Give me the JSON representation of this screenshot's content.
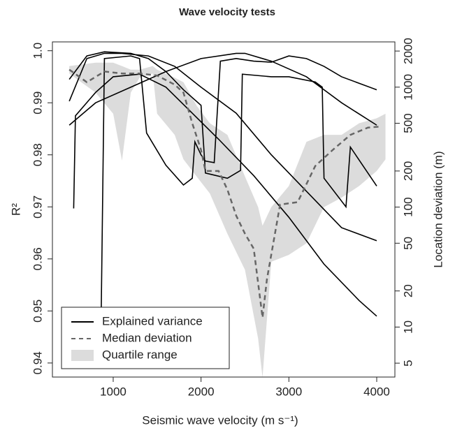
{
  "chart_data": {
    "type": "line",
    "title": "Wave velocity tests",
    "x_label": "Seismic wave velocity (m s⁻¹)",
    "y_label": "R²",
    "y2_label": "Location deviation (m)",
    "xlim": [
      308,
      4207
    ],
    "xticks": [
      1000,
      2000,
      3000,
      4000
    ],
    "ylim": [
      0.9373,
      1.0017
    ],
    "yticks": [
      0.94,
      0.95,
      0.96,
      0.97,
      0.98,
      0.99,
      {
        "value": 1,
        "label": "1.0"
      }
    ],
    "y2lim": [
      3.83,
      2384
    ],
    "y2_log": true,
    "y2ticks": [
      5,
      10,
      20,
      50,
      100,
      200,
      500,
      1000,
      2000
    ],
    "legend": "bottom-left",
    "series": [
      {
        "name": "Explained variance",
        "color": "#000000",
        "style": "solid",
        "curves": [
          {
            "x": [
              500,
              800,
              1200,
              1600,
              2000,
              2400,
              2500,
              2800,
              3200,
              3600,
              4000
            ],
            "values": [
              0.9857,
              0.99,
              0.993,
              0.996,
              0.9985,
              0.9995,
              0.9995,
              0.998,
              0.995,
              0.99,
              0.9857
            ]
          },
          {
            "x": [
              500,
              700,
              900,
              1100,
              1400,
              1700,
              2000,
              2400,
              2800,
              3200,
              3600,
              4000
            ],
            "values": [
              0.9903,
              0.9985,
              0.9995,
              0.9995,
              0.999,
              0.997,
              0.993,
              0.988,
              0.98,
              0.973,
              0.966,
              0.9635
            ]
          },
          {
            "x": [
              550,
              570,
              800,
              1000,
              1300,
              1600,
              1900,
              2200,
              2600,
              3000,
              3400,
              3800,
              4000
            ],
            "values": [
              0.9697,
              0.9875,
              0.992,
              0.995,
              0.9955,
              0.993,
              0.988,
              0.983,
              0.976,
              0.968,
              0.959,
              0.952,
              0.949
            ]
          },
          {
            "x": [
              860,
              900,
              1200,
              1300,
              1380,
              1600,
              1800,
              1900,
              1930,
              2000,
              2050,
              2150,
              2220,
              2400,
              2600,
              2800,
              3000,
              3200,
              3400,
              3600,
              4000
            ],
            "values": [
              0.945,
              0.9985,
              0.999,
              0.9985,
              0.9842,
              0.978,
              0.9742,
              0.9755,
              0.9825,
              0.98,
              0.9788,
              0.9785,
              0.998,
              0.9985,
              0.998,
              0.9978,
              0.999,
              0.9985,
              0.997,
              0.995,
              0.9925
            ]
          },
          {
            "x": [
              500,
              700,
              900,
              1200,
              1400,
              1600,
              1800,
              2000,
              2050,
              2300,
              2450,
              2470,
              2800,
              3000,
              3300,
              3380,
              3400,
              3650,
              3700,
              4000
            ],
            "values": [
              0.9945,
              0.999,
              0.9998,
              0.9995,
              0.9985,
              0.996,
              0.9925,
              0.9895,
              0.9765,
              0.9755,
              0.977,
              0.9955,
              0.995,
              0.995,
              0.994,
              0.993,
              0.9755,
              0.97,
              0.9815,
              0.974
            ]
          }
        ]
      },
      {
        "name": "Median deviation",
        "color": "#666666",
        "style": "dashed",
        "axis": "y2",
        "x": [
          500,
          700,
          900,
          1100,
          1300,
          1500,
          1700,
          1800,
          1900,
          2000,
          2050,
          2200,
          2300,
          2400,
          2500,
          2600,
          2700,
          2750,
          2900,
          3100,
          3300,
          3500,
          3700,
          3900,
          4050
        ],
        "values": [
          1400,
          1100,
          1350,
          1300,
          1300,
          1250,
          1050,
          900,
          500,
          300,
          200,
          200,
          140,
          85,
          60,
          45,
          12,
          25,
          105,
          110,
          220,
          300,
          400,
          460,
          470
        ]
      },
      {
        "name": "Quartile range",
        "color": "#dcdcdc",
        "axis": "y2",
        "x": [
          500,
          800,
          1000,
          1100,
          1200,
          1300,
          1450,
          1500,
          1700,
          1800,
          1950,
          2100,
          2300,
          2500,
          2650,
          2700,
          2800,
          3000,
          3200,
          3400,
          3600,
          3800,
          4000,
          4100
        ],
        "low": [
          1300,
          900,
          600,
          244,
          900,
          1200,
          1300,
          600,
          400,
          250,
          180,
          130,
          60,
          30,
          8,
          3.8,
          35,
          40,
          50,
          100,
          120,
          150,
          200,
          250
        ],
        "high": [
          1500,
          1600,
          1600,
          1500,
          1400,
          1400,
          1500,
          1400,
          1200,
          1100,
          700,
          500,
          400,
          180,
          100,
          70,
          100,
          150,
          350,
          400,
          400,
          500,
          550,
          600
        ]
      }
    ]
  }
}
